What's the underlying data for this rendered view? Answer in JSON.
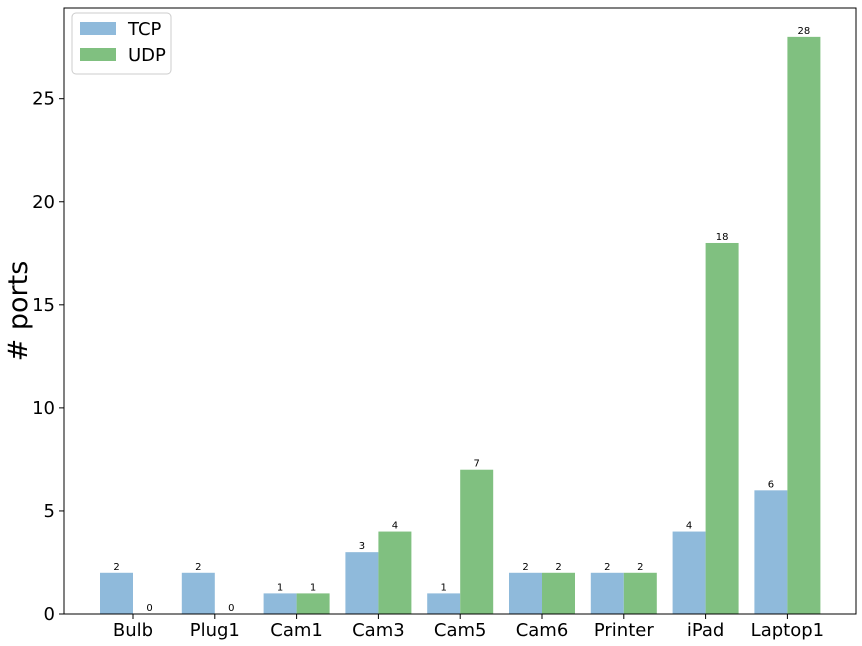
{
  "chart_data": {
    "type": "bar",
    "categories": [
      "Bulb",
      "Plug1",
      "Cam1",
      "Cam3",
      "Cam5",
      "Cam6",
      "Printer",
      "iPad",
      "Laptop1"
    ],
    "series": [
      {
        "name": "TCP",
        "values": [
          2,
          2,
          1,
          3,
          1,
          2,
          2,
          4,
          6
        ],
        "color": "#8fbadb"
      },
      {
        "name": "UDP",
        "values": [
          0,
          0,
          1,
          4,
          7,
          2,
          2,
          18,
          28
        ],
        "color": "#80c080"
      }
    ],
    "title": "",
    "xlabel": "",
    "ylabel": "# ports",
    "ylim": [
      0,
      29.4
    ],
    "yticks": [
      0,
      5,
      10,
      15,
      20,
      25
    ],
    "grid": false,
    "legend_position": "top-left",
    "data_labels": true
  }
}
